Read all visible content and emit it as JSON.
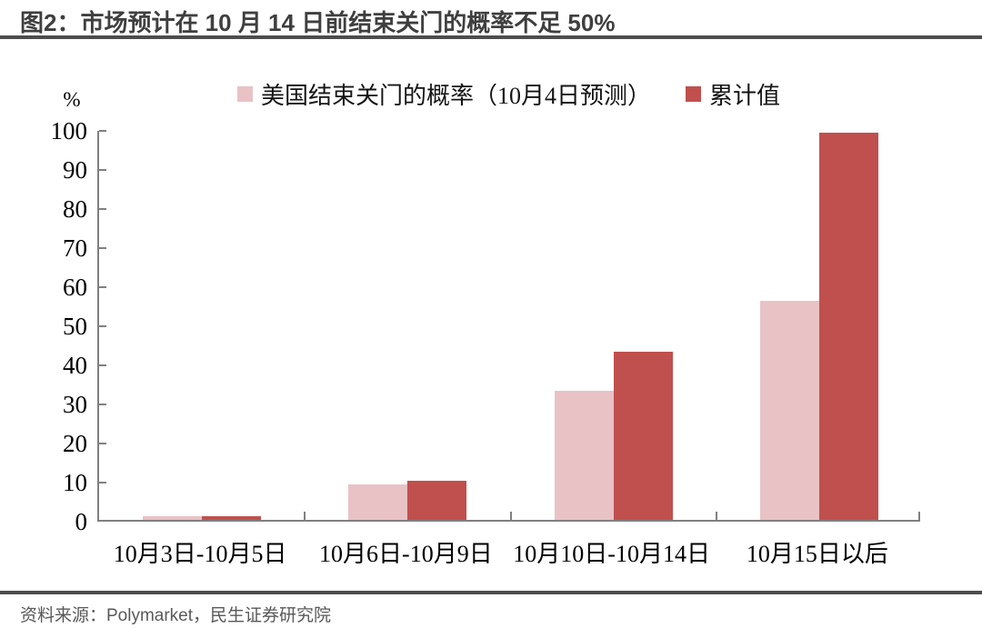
{
  "figure": {
    "title": "图2：市场预计在 10 月 14 日前结束关门的概率不足 50%",
    "source_note": "资料来源：Polymarket，民生证券研究院"
  },
  "chart_data": {
    "type": "bar",
    "title": "市场预计在 10 月 14 日前结束关门的概率不足 50%",
    "unit_label": "%",
    "categories": [
      "10月3日-10月5日",
      "10月6日-10月9日",
      "10月10日-10月14日",
      "10月15日以后"
    ],
    "series": [
      {
        "name": "美国结束关门的概率（10月4日预测）",
        "color": "#E9C2C5",
        "values": [
          1,
          9,
          33,
          56
        ]
      },
      {
        "name": "累计值",
        "color": "#C0504D",
        "values": [
          1,
          10,
          43,
          99
        ]
      }
    ],
    "ylim": [
      0,
      100
    ],
    "ytick_step": 10,
    "grid": false,
    "legend_position": "top",
    "axis_color": "#808080"
  }
}
